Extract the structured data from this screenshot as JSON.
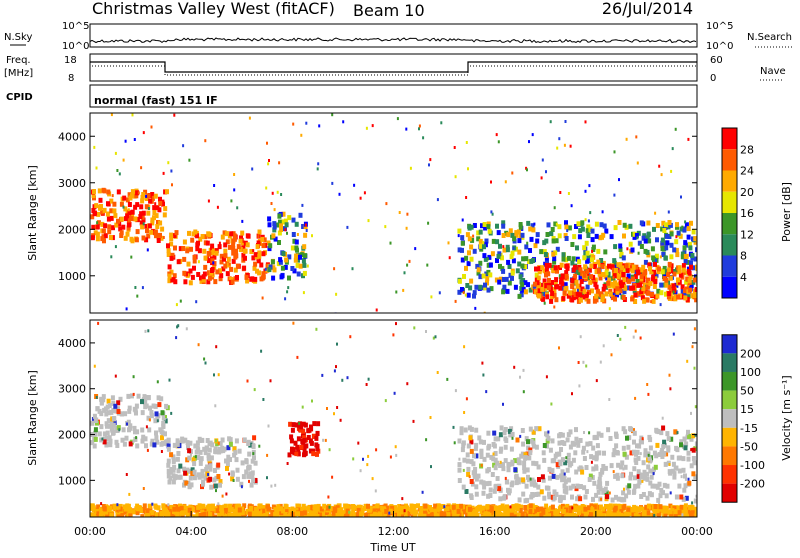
{
  "header": {
    "title": "Christmas Valley West (fitACF)",
    "beam": "Beam 10",
    "date": "26/Jul/2014"
  },
  "panels": {
    "nsky": {
      "label": "N.Sky",
      "left_ticks": [
        "10^5",
        "10^0"
      ],
      "right_ticks": [
        "10^5",
        "10^0"
      ],
      "right_label": "N.Search"
    },
    "freq": {
      "label_line1": "Freq.",
      "label_line2": "[MHz]",
      "left_ticks": [
        "18",
        "8"
      ],
      "right_ticks": [
        "60",
        "0"
      ],
      "right_label": "Nave"
    },
    "cpid": {
      "label": "CPID",
      "text": "normal (fast) 151 IF"
    }
  },
  "chart_data": [
    {
      "type": "heatmap",
      "title": "",
      "ylabel": "Slant Range [km]",
      "xlabel": "",
      "ylim": [
        200,
        4500
      ],
      "yticks": [
        1000,
        2000,
        3000,
        4000
      ],
      "colorbar": {
        "label": "Power [dB]",
        "ticks": [
          "28",
          "24",
          "20",
          "16",
          "12",
          "8",
          "4"
        ],
        "colors": [
          "#ff0000",
          "#ff5a00",
          "#ffaa00",
          "#e6e600",
          "#3c9628",
          "#2a8a5a",
          "#203cdc",
          "#0000ff"
        ]
      },
      "regions": [
        {
          "t": [
            0,
            3
          ],
          "r": [
            1800,
            2900
          ],
          "level": "high"
        },
        {
          "t": [
            3,
            7
          ],
          "r": [
            900,
            2000
          ],
          "level": "high"
        },
        {
          "t": [
            7,
            8.5
          ],
          "r": [
            1000,
            2400
          ],
          "level": "medium"
        },
        {
          "t": [
            14.5,
            24
          ],
          "r": [
            600,
            2200
          ],
          "level": "medium"
        },
        {
          "t": [
            17.5,
            24
          ],
          "r": [
            500,
            1300
          ],
          "level": "high"
        }
      ]
    },
    {
      "type": "heatmap",
      "title": "",
      "ylabel": "Slant Range [km]",
      "xlabel": "Time UT",
      "ylim": [
        200,
        4500
      ],
      "yticks": [
        1000,
        2000,
        3000,
        4000
      ],
      "xticks": [
        "00:00",
        "04:00",
        "08:00",
        "12:00",
        "16:00",
        "20:00",
        "00:00"
      ],
      "colorbar": {
        "label": "Velocity [m s⁻¹]",
        "ticks": [
          "200",
          "100",
          "50",
          "15",
          "-15",
          "-50",
          "-100",
          "-200"
        ],
        "colors": [
          "#1e2ad2",
          "#2a7a64",
          "#3c9628",
          "#8ccc3c",
          "#bebebe",
          "#ffb400",
          "#ff7800",
          "#ff3200",
          "#e10000"
        ]
      },
      "regions": [
        {
          "t": [
            0,
            3
          ],
          "r": [
            1800,
            2900
          ],
          "level": "gray"
        },
        {
          "t": [
            3,
            6.5
          ],
          "r": [
            900,
            2000
          ],
          "level": "gray"
        },
        {
          "t": [
            7.8,
            9
          ],
          "r": [
            1600,
            2300
          ],
          "level": "red"
        },
        {
          "t": [
            14.5,
            24
          ],
          "r": [
            600,
            2200
          ],
          "level": "gray"
        },
        {
          "t": [
            0,
            24
          ],
          "r": [
            250,
            500
          ],
          "level": "orange"
        }
      ]
    }
  ]
}
